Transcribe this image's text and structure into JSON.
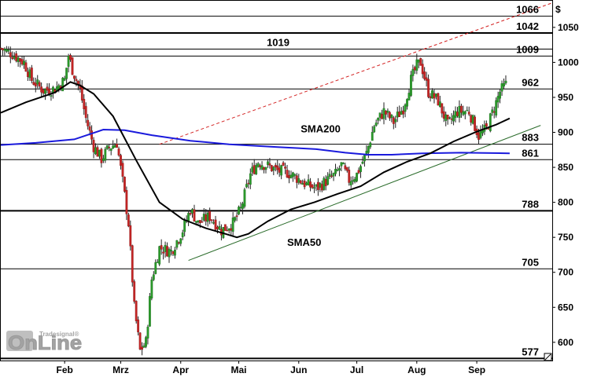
{
  "chart_data": {
    "type": "candlestick",
    "currency": "$",
    "ylim": [
      574,
      1088
    ],
    "y_ticks": [
      600,
      650,
      700,
      750,
      800,
      850,
      900,
      950,
      1000,
      1050
    ],
    "months": [
      {
        "label": "Feb",
        "day": 35
      },
      {
        "label": "Mrz",
        "day": 64
      },
      {
        "label": "Apr",
        "day": 95
      },
      {
        "label": "Mai",
        "day": 125
      },
      {
        "label": "Jun",
        "day": 156
      },
      {
        "label": "Jul",
        "day": 186
      },
      {
        "label": "Aug",
        "day": 217
      },
      {
        "label": "Sep",
        "day": 248
      }
    ],
    "x_range_days": [
      2,
      287
    ],
    "price_points": [
      [
        2,
        1020
      ],
      [
        8,
        1012
      ],
      [
        14,
        1000
      ],
      [
        18,
        975
      ],
      [
        24,
        960
      ],
      [
        30,
        962
      ],
      [
        35,
        975
      ],
      [
        37,
        1010
      ],
      [
        39,
        990
      ],
      [
        43,
        960
      ],
      [
        46,
        920
      ],
      [
        50,
        880
      ],
      [
        54,
        862
      ],
      [
        58,
        878
      ],
      [
        62,
        885
      ],
      [
        65,
        830
      ],
      [
        68,
        770
      ],
      [
        71,
        650
      ],
      [
        74,
        588
      ],
      [
        77,
        600
      ],
      [
        80,
        690
      ],
      [
        84,
        735
      ],
      [
        90,
        730
      ],
      [
        96,
        760
      ],
      [
        100,
        790
      ],
      [
        104,
        770
      ],
      [
        110,
        780
      ],
      [
        116,
        760
      ],
      [
        122,
        770
      ],
      [
        126,
        790
      ],
      [
        131,
        840
      ],
      [
        135,
        858
      ],
      [
        140,
        852
      ],
      [
        145,
        845
      ],
      [
        150,
        843
      ],
      [
        155,
        835
      ],
      [
        160,
        825
      ],
      [
        165,
        820
      ],
      [
        170,
        830
      ],
      [
        175,
        840
      ],
      [
        178,
        853
      ],
      [
        182,
        832
      ],
      [
        186,
        840
      ],
      [
        191,
        870
      ],
      [
        195,
        910
      ],
      [
        200,
        930
      ],
      [
        205,
        915
      ],
      [
        210,
        935
      ],
      [
        214,
        975
      ],
      [
        217,
        995
      ],
      [
        219,
        1000
      ],
      [
        223,
        958
      ],
      [
        228,
        945
      ],
      [
        233,
        910
      ],
      [
        238,
        930
      ],
      [
        244,
        930
      ],
      [
        249,
        895
      ],
      [
        253,
        905
      ],
      [
        257,
        935
      ],
      [
        260,
        958
      ],
      [
        263,
        968
      ]
    ],
    "series": [
      {
        "name": "SMA200",
        "color": "#1a1adc",
        "points": [
          [
            2,
            882
          ],
          [
            20,
            885
          ],
          [
            40,
            890
          ],
          [
            55,
            904
          ],
          [
            66,
            903
          ],
          [
            80,
            896
          ],
          [
            100,
            888
          ],
          [
            120,
            883
          ],
          [
            145,
            879
          ],
          [
            165,
            876
          ],
          [
            180,
            871
          ],
          [
            192,
            868
          ],
          [
            204,
            868
          ],
          [
            220,
            870
          ],
          [
            240,
            871
          ],
          [
            265,
            870
          ]
        ]
      },
      {
        "name": "SMA50",
        "color": "#000000",
        "points": [
          [
            2,
            928
          ],
          [
            15,
            943
          ],
          [
            30,
            957
          ],
          [
            38,
            972
          ],
          [
            43,
            967
          ],
          [
            50,
            955
          ],
          [
            60,
            923
          ],
          [
            72,
            860
          ],
          [
            84,
            800
          ],
          [
            96,
            776
          ],
          [
            108,
            763
          ],
          [
            118,
            755
          ],
          [
            124,
            750
          ],
          [
            130,
            755
          ],
          [
            140,
            773
          ],
          [
            152,
            790
          ],
          [
            164,
            800
          ],
          [
            176,
            812
          ],
          [
            188,
            823
          ],
          [
            200,
            843
          ],
          [
            212,
            858
          ],
          [
            224,
            870
          ],
          [
            236,
            887
          ],
          [
            248,
            901
          ],
          [
            258,
            911
          ],
          [
            265,
            920
          ]
        ]
      }
    ],
    "horizontal_lines": [
      {
        "value": 1066,
        "label": "1066",
        "thick": false
      },
      {
        "value": 1042,
        "label": "1042",
        "thick": true
      },
      {
        "value": 1019,
        "label": "1019",
        "thick": false
      },
      {
        "value": 1009,
        "label": "1009",
        "thick": false
      },
      {
        "value": 962,
        "label": "962",
        "thick": false
      },
      {
        "value": 883,
        "label": "883",
        "thick": false
      },
      {
        "value": 861,
        "label": "861",
        "thick": false
      },
      {
        "value": 788,
        "label": "788",
        "thick": true
      },
      {
        "value": 705,
        "label": "705",
        "thick": false
      },
      {
        "value": 577,
        "label": "577",
        "thick": true
      }
    ],
    "trendlines": [
      {
        "color": "#d32020",
        "dashed": true,
        "from": [
          84,
          883
        ],
        "to": [
          287,
          1085
        ]
      },
      {
        "color": "#2a6b2a",
        "dashed": false,
        "from": [
          99,
          717
        ],
        "to": [
          281,
          910
        ]
      }
    ],
    "annotations": [
      {
        "text": "SMA200",
        "day": 157,
        "value": 900,
        "color": "#1a1adc"
      },
      {
        "text": "SMA50",
        "day": 150,
        "value": 738,
        "color": "#000000"
      }
    ]
  },
  "branding": {
    "logo_main": "OnLine",
    "logo_sub": "Tradesignal®"
  }
}
